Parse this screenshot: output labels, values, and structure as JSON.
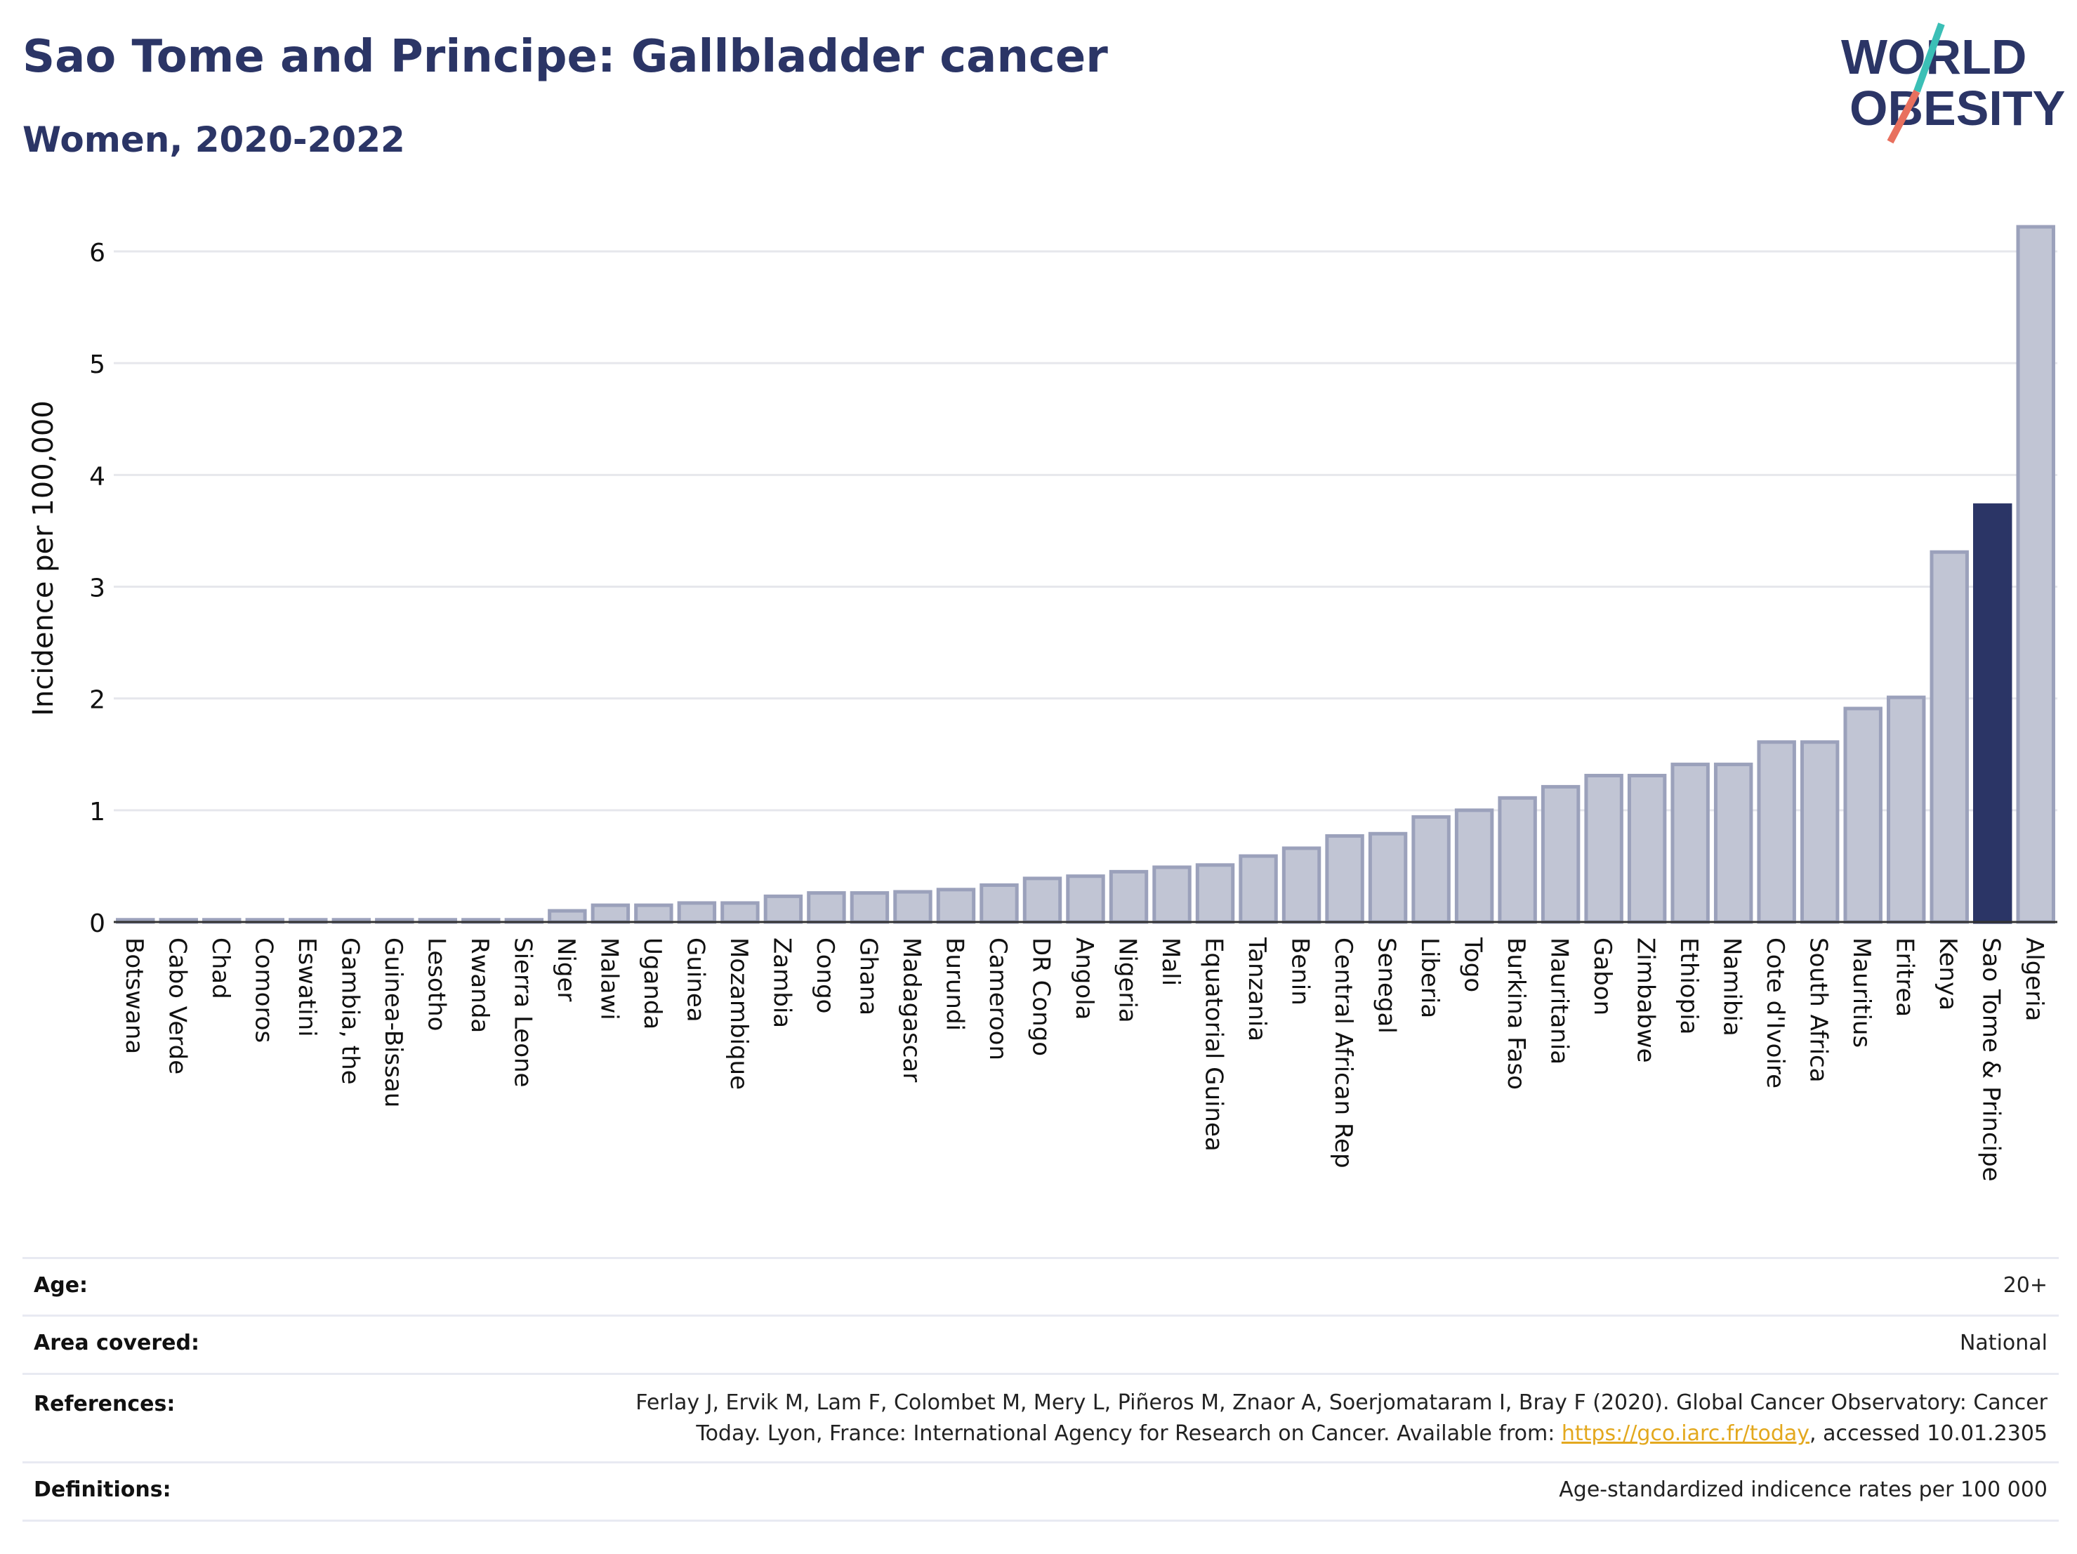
{
  "header": {
    "title": "Sao Tome and Principe: Gallbladder cancer",
    "subtitle": "Women, 2020-2022"
  },
  "logo": {
    "line1": "WORLD",
    "line2": "OBESITY",
    "text_color": "#2b3566",
    "slash_colors": [
      "#3bbfb6",
      "#e8705e"
    ]
  },
  "chart_data": {
    "type": "bar",
    "ylabel": "Incidence per 100,000",
    "xlabel": "",
    "ylim": [
      0,
      6.3
    ],
    "yticks": [
      0,
      1,
      2,
      3,
      4,
      5,
      6
    ],
    "grid": true,
    "highlight": "Sao Tome & Principe",
    "colors": {
      "default": "#c1c5d4",
      "default_border": "#9ba1bb",
      "highlight": "#2b3566"
    },
    "categories": [
      "Botswana",
      "Cabo Verde",
      "Chad",
      "Comoros",
      "Eswatini",
      "Gambia, the",
      "Guinea-Bissau",
      "Lesotho",
      "Rwanda",
      "Sierra Leone",
      "Niger",
      "Malawi",
      "Uganda",
      "Guinea",
      "Mozambique",
      "Zambia",
      "Congo",
      "Ghana",
      "Madagascar",
      "Burundi",
      "Cameroon",
      "DR Congo",
      "Angola",
      "Nigeria",
      "Mali",
      "Equatorial Guinea",
      "Tanzania",
      "Benin",
      "Central African Rep",
      "Senegal",
      "Liberia",
      "Togo",
      "Burkina Faso",
      "Mauritania",
      "Gabon",
      "Zimbabwe",
      "Ethiopia",
      "Namibia",
      "Cote d'Ivoire",
      "South Africa",
      "Mauritius",
      "Eritrea",
      "Kenya",
      "Sao Tome & Principe",
      "Algeria"
    ],
    "values": [
      0.02,
      0.02,
      0.02,
      0.02,
      0.02,
      0.02,
      0.02,
      0.02,
      0.02,
      0.02,
      0.1,
      0.15,
      0.15,
      0.17,
      0.17,
      0.23,
      0.26,
      0.26,
      0.27,
      0.29,
      0.33,
      0.39,
      0.41,
      0.45,
      0.49,
      0.51,
      0.59,
      0.66,
      0.77,
      0.79,
      0.94,
      1.0,
      1.11,
      1.21,
      1.31,
      1.31,
      1.41,
      1.41,
      1.61,
      1.61,
      1.91,
      2.01,
      3.31,
      3.73,
      6.22
    ]
  },
  "info": {
    "age_label": "Age:",
    "age_value": "20+",
    "area_label": "Area covered:",
    "area_value": "National",
    "references_label": "References:",
    "references_line1": "Ferlay J, Ervik M, Lam F, Colombet M, Mery L, Piñeros M, Znaor A, Soerjomataram I, Bray F (2020). Global Cancer Observatory: Cancer",
    "references_line2_pre": "Today. Lyon, France: International Agency for Research on Cancer. Available from: ",
    "references_link": "https://gco.iarc.fr/today",
    "references_line2_post": ", accessed 10.01.2305",
    "definitions_label": "Definitions:",
    "definitions_value": "Age-standardized indicence rates per 100 000"
  }
}
